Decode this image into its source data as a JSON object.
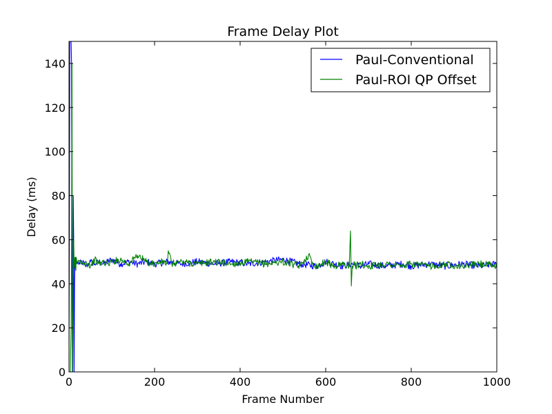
{
  "chart_data": {
    "type": "line",
    "title": "Frame Delay Plot",
    "xlabel": "Frame Number",
    "ylabel": "Delay (ms)",
    "xlim": [
      0,
      1000
    ],
    "ylim": [
      0,
      150
    ],
    "xticks": [
      0,
      200,
      400,
      600,
      800,
      1000
    ],
    "yticks": [
      0,
      20,
      40,
      60,
      80,
      100,
      120,
      140
    ],
    "grid": false,
    "legend_position": "top-right",
    "series": [
      {
        "name": "Paul-Conventional",
        "color": "#0000ff",
        "x": [
          0,
          2,
          4,
          5,
          6,
          7,
          8,
          9,
          10,
          11,
          12,
          13,
          14,
          15,
          17,
          20,
          25,
          30,
          40,
          50,
          60,
          70,
          80,
          90,
          100,
          120,
          140,
          160,
          180,
          200,
          230,
          260,
          300,
          340,
          380,
          420,
          460,
          500,
          540,
          580,
          600,
          620,
          640,
          660,
          680,
          700,
          740,
          780,
          800,
          840,
          880,
          920,
          960,
          1000
        ],
        "y": [
          0,
          150,
          150,
          150,
          140,
          50,
          0,
          20,
          80,
          60,
          0,
          40,
          50,
          52,
          49,
          50,
          49,
          50,
          48,
          50,
          49,
          50,
          49,
          50,
          51,
          49,
          50,
          49,
          50,
          49,
          50,
          49,
          50,
          49,
          50,
          49,
          50,
          51,
          49,
          48,
          50,
          49,
          48,
          49,
          48,
          49,
          48,
          49,
          48,
          49,
          48,
          49,
          48,
          49
        ]
      },
      {
        "name": "Paul-ROI QP Offset",
        "color": "#008000",
        "x": [
          0,
          3,
          5,
          6,
          7,
          8,
          9,
          10,
          11,
          12,
          13,
          14,
          15,
          16,
          17,
          18,
          20,
          25,
          30,
          40,
          50,
          60,
          70,
          80,
          90,
          100,
          120,
          140,
          160,
          180,
          200,
          220,
          230,
          232,
          240,
          260,
          300,
          340,
          380,
          420,
          460,
          500,
          540,
          560,
          570,
          580,
          600,
          620,
          640,
          655,
          658,
          660,
          662,
          665,
          670,
          680,
          700,
          740,
          780,
          800,
          840,
          880,
          920,
          960,
          1000
        ],
        "y": [
          0,
          0,
          20,
          60,
          140,
          20,
          0,
          40,
          60,
          50,
          47,
          52,
          48,
          46,
          52,
          50,
          49,
          50,
          49,
          50,
          48,
          51,
          49,
          50,
          49,
          50,
          51,
          49,
          53,
          50,
          49,
          50,
          49,
          55,
          49,
          50,
          49,
          50,
          49,
          50,
          49,
          50,
          48,
          53,
          49,
          48,
          50,
          48,
          49,
          48,
          64,
          39,
          48,
          49,
          48,
          49,
          48,
          49,
          48,
          49,
          48,
          49,
          48,
          49,
          48
        ]
      }
    ]
  }
}
